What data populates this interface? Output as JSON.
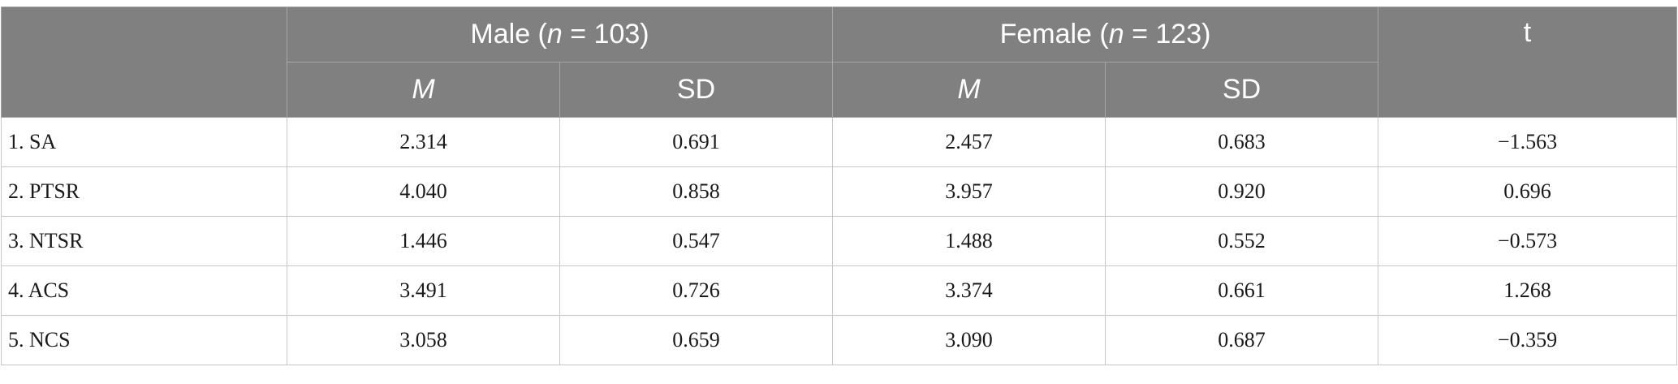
{
  "table": {
    "header": {
      "male_group_prefix": "Male (",
      "male_group_n": "n",
      "male_group_suffix": " = 103)",
      "female_group_prefix": "Female (",
      "female_group_n": "n",
      "female_group_suffix": " = 123)",
      "t_label": "t",
      "male_mean_label": "M",
      "male_sd_label": "SD",
      "female_mean_label": "M",
      "female_sd_label": "SD"
    },
    "rows": [
      {
        "label": "1. SA",
        "male_m": "2.314",
        "male_sd": "0.691",
        "female_m": "2.457",
        "female_sd": "0.683",
        "t": "−1.563"
      },
      {
        "label": "2. PTSR",
        "male_m": "4.040",
        "male_sd": "0.858",
        "female_m": "3.957",
        "female_sd": "0.920",
        "t": "0.696"
      },
      {
        "label": "3. NTSR",
        "male_m": "1.446",
        "male_sd": "0.547",
        "female_m": "1.488",
        "female_sd": "0.552",
        "t": "−0.573"
      },
      {
        "label": "4. ACS",
        "male_m": "3.491",
        "male_sd": "0.726",
        "female_m": "3.374",
        "female_sd": "0.661",
        "t": "1.268"
      },
      {
        "label": "5. NCS",
        "male_m": "3.058",
        "male_sd": "0.659",
        "female_m": "3.090",
        "female_sd": "0.687",
        "t": "−0.359"
      }
    ]
  }
}
